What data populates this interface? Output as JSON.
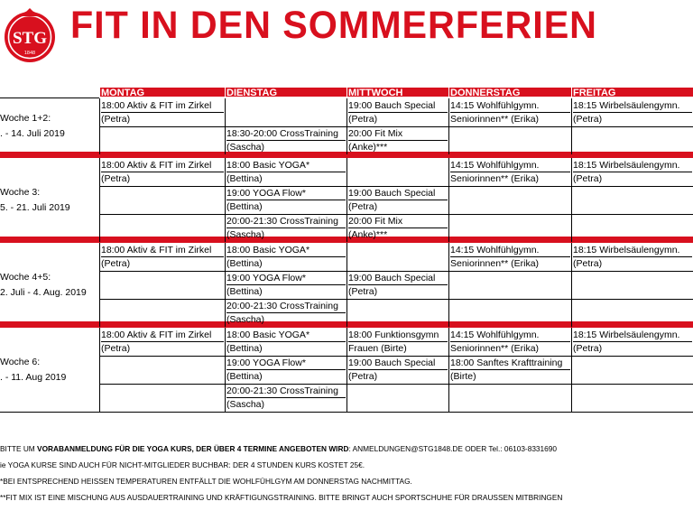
{
  "title": "FIT IN DEN SOMMERFERIEN",
  "logo": {
    "text": "STG",
    "year": "1848",
    "color": "#d8101e"
  },
  "days": [
    "MONTAG",
    "DIENSTAG",
    "MITTWOCH",
    "DONNERSTAG",
    "FREITAG"
  ],
  "weeks": [
    {
      "label": "Woche 1+2:",
      "dates": ". - 14. Juli 2019",
      "slots": [
        {
          "mon": [
            "18:00 Aktiv & FIT im Zirkel",
            "(Petra)"
          ],
          "tue": [
            "",
            ""
          ],
          "wed": [
            "19:00 Bauch Special",
            "(Petra)"
          ],
          "thu": [
            "14:15 Wohlfühlgymn.",
            "Seniorinnen** (Erika)"
          ],
          "fri": [
            "18:15 Wirbelsäulengymn.",
            "(Petra)"
          ]
        },
        {
          "mon": [
            "",
            ""
          ],
          "tue": [
            "18:30-20:00 CrossTraining",
            "(Sascha)"
          ],
          "wed": [
            "20:00 Fit Mix",
            "(Anke)***"
          ],
          "thu": [
            "",
            ""
          ],
          "fri": [
            "",
            ""
          ]
        }
      ]
    },
    {
      "label": "Woche 3:",
      "dates": "5. - 21. Juli 2019",
      "slots": [
        {
          "mon": [
            "18:00 Aktiv & FIT im Zirkel",
            "(Petra)"
          ],
          "tue": [
            "18:00 Basic YOGA*",
            "(Bettina)"
          ],
          "wed": [
            "",
            ""
          ],
          "thu": [
            "14:15 Wohlfühlgymn.",
            "Seniorinnen** (Erika)"
          ],
          "fri": [
            "18:15 Wirbelsäulengymn.",
            "(Petra)"
          ]
        },
        {
          "mon": [
            "",
            ""
          ],
          "tue": [
            "19:00 YOGA Flow*",
            "(Bettina)"
          ],
          "wed": [
            "19:00 Bauch Special",
            "(Petra)"
          ],
          "thu": [
            "",
            ""
          ],
          "fri": [
            "",
            ""
          ]
        },
        {
          "mon": [
            "",
            ""
          ],
          "tue": [
            "20:00-21:30 CrossTraining",
            "(Sascha)"
          ],
          "wed": [
            "20:00 Fit Mix",
            "(Anke)***"
          ],
          "thu": [
            "",
            ""
          ],
          "fri": [
            "",
            ""
          ]
        }
      ]
    },
    {
      "label": "Woche 4+5:",
      "dates": "2. Juli - 4. Aug. 2019",
      "slots": [
        {
          "mon": [
            "18:00 Aktiv & FIT im Zirkel",
            "(Petra)"
          ],
          "tue": [
            "18:00 Basic YOGA*",
            "(Bettina)"
          ],
          "wed": [
            "",
            ""
          ],
          "thu": [
            "14:15 Wohlfühlgymn.",
            "Seniorinnen** (Erika)"
          ],
          "fri": [
            "18:15 Wirbelsäulengymn.",
            "(Petra)"
          ]
        },
        {
          "mon": [
            "",
            ""
          ],
          "tue": [
            "19:00 YOGA Flow*",
            "(Bettina)"
          ],
          "wed": [
            "19:00 Bauch Special",
            "(Petra)"
          ],
          "thu": [
            "",
            ""
          ],
          "fri": [
            "",
            ""
          ]
        },
        {
          "mon": [
            "",
            ""
          ],
          "tue": [
            "20:00-21:30 CrossTraining",
            "(Sascha)"
          ],
          "wed": [
            "",
            ""
          ],
          "thu": [
            "",
            ""
          ],
          "fri": [
            "",
            ""
          ]
        }
      ]
    },
    {
      "label": "Woche 6:",
      "dates": ". - 11. Aug 2019",
      "slots": [
        {
          "mon": [
            "18:00 Aktiv & FIT im Zirkel",
            "(Petra)"
          ],
          "tue": [
            "18:00 Basic YOGA*",
            "(Bettina)"
          ],
          "wed": [
            "18:00 Funktionsgymn",
            "Frauen (Birte)"
          ],
          "thu": [
            "14:15 Wohlfühlgymn.",
            "Seniorinnen** (Erika)"
          ],
          "fri": [
            "18:15 Wirbelsäulengymn.",
            "(Petra)"
          ]
        },
        {
          "mon": [
            "",
            ""
          ],
          "tue": [
            "19:00 YOGA Flow*",
            "(Bettina)"
          ],
          "wed": [
            "19:00 Bauch Special",
            "(Petra)"
          ],
          "thu": [
            "18:00 Sanftes Krafttraining",
            "(Birte)"
          ],
          "fri": [
            "",
            ""
          ]
        },
        {
          "mon": [
            "",
            ""
          ],
          "tue": [
            "20:00-21:30 CrossTraining",
            "(Sascha)"
          ],
          "wed": [
            "",
            ""
          ],
          "thu": [
            "",
            ""
          ],
          "fri": [
            "",
            ""
          ]
        }
      ]
    }
  ],
  "notes": [
    {
      "pre": "BITTE UM ",
      "bold": "VORABANMELDUNG FÜR DIE YOGA KURS, DER ÜBER 4 TERMINE ANGEBOTEN WIRD",
      "post": ": ANMELDUNGEN@STG1848.DE ODER Tel.: 06103-8331690"
    },
    {
      "pre": "ie YOGA KURSE SIND AUCH FÜR NICHT-MITGLIEDER BUCHBAR: DER 4 STUNDEN KURS KOSTET 25€.",
      "bold": "",
      "post": ""
    },
    {
      "pre": "*BEI ENTSPRECHEND HEISSEN TEMPERATUREN ENTFÄLLT DIE WOHLFÜHLGYM AM DONNERSTAG NACHMITTAG.",
      "bold": "",
      "post": ""
    },
    {
      "pre": "**FIT MIX IST EINE MISCHUNG AUS AUSDAUERTRAINING UND KRÄFTIGUNGSTRAINING. BITTE BRINGT AUCH SPORTSCHUHE FÜR DRAUSSEN MITBRINGEN",
      "bold": "",
      "post": ""
    }
  ]
}
